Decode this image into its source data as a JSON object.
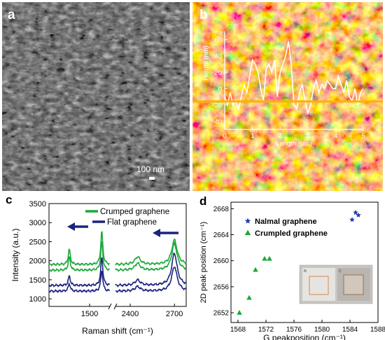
{
  "panels": {
    "a": {
      "letter": "a",
      "scale_bar": "100 nm"
    },
    "b": {
      "letter": "b",
      "ylabel": "Height  (nm)",
      "xlabel": "Length (μm)",
      "yticks": [
        "60",
        "40",
        "20",
        "0",
        "-20",
        "-40"
      ],
      "xticks": [
        "0",
        "1",
        "2",
        "3",
        "4",
        "5"
      ]
    },
    "c": {
      "letter": "c",
      "ylabel": "Intensity  (a.u.)",
      "xlabel": "Raman shift (cm⁻¹)",
      "yticks": [
        "3500",
        "3000",
        "2500",
        "2000",
        "1500",
        "1000"
      ],
      "xticks": [
        "1500",
        "2400",
        "2700"
      ],
      "legend": [
        "Crumped graphene",
        "Flat graphene"
      ]
    },
    "d": {
      "letter": "d",
      "ylabel": "2D peak position (cm⁻¹)",
      "xlabel": "G peakposition (cm⁻¹)",
      "yticks": [
        "2668",
        "2664",
        "2660",
        "2656",
        "2652"
      ],
      "xticks": [
        "1568",
        "1572",
        "1576",
        "1580",
        "1584",
        "1588"
      ],
      "legend": [
        "Nalmal graphene",
        "Crumpled graphene"
      ],
      "inset_labels": [
        "N",
        "C"
      ]
    }
  },
  "colors": {
    "green": "#1ea83a",
    "navy": "#1a237e",
    "orange": "#ffb000",
    "blue_star": "#1f3ea8"
  },
  "chart_data": [
    {
      "panel": "b",
      "type": "line",
      "xlim": [
        0,
        5
      ],
      "ylim": [
        -50,
        70
      ],
      "x": [
        0,
        0.1,
        0.2,
        0.3,
        0.4,
        0.5,
        0.6,
        0.7,
        0.8,
        0.9,
        1.0,
        1.1,
        1.2,
        1.3,
        1.4,
        1.5,
        1.6,
        1.7,
        1.8,
        1.9,
        2.0,
        2.1,
        2.2,
        2.3,
        2.4,
        2.5,
        2.6,
        2.7,
        2.8,
        2.9,
        3.0,
        3.1,
        3.2,
        3.3,
        3.4,
        3.5,
        3.6,
        3.7,
        3.8,
        3.9,
        4.0,
        4.1,
        4.2,
        4.3,
        4.4,
        4.5,
        4.6,
        4.7,
        4.8,
        4.9,
        5.0
      ],
      "y": [
        -10,
        -20,
        -5,
        -20,
        -15,
        -25,
        -10,
        5,
        -5,
        15,
        35,
        30,
        20,
        0,
        -15,
        25,
        30,
        20,
        35,
        -10,
        20,
        30,
        40,
        58,
        30,
        -20,
        -25,
        -5,
        5,
        -15,
        -30,
        -20,
        0,
        10,
        -5,
        5,
        0,
        10,
        5,
        0,
        0,
        15,
        5,
        -5,
        10,
        -10,
        -15,
        0,
        -20,
        -5,
        0
      ]
    },
    {
      "panel": "c",
      "type": "line",
      "segments": [
        "1200-1650",
        "2300-2780"
      ],
      "ylim": [
        800,
        3500
      ],
      "series": [
        {
          "name": "Crumped graphene",
          "color": "green",
          "base": 1900,
          "peaks": [
            [
              1350,
              400
            ],
            [
              1590,
              870
            ],
            [
              2450,
              200
            ],
            [
              2700,
              650
            ]
          ]
        },
        {
          "name": "Crumped graphene",
          "color": "green",
          "base": 1750,
          "peaks": [
            [
              1350,
              350
            ],
            [
              1590,
              750
            ],
            [
              2450,
              180
            ],
            [
              2700,
              700
            ]
          ]
        },
        {
          "name": "Flat graphene",
          "color": "navy",
          "base": 1350,
          "peaks": [
            [
              1350,
              250
            ],
            [
              1590,
              750
            ],
            [
              2450,
              140
            ],
            [
              2700,
              850
            ]
          ]
        },
        {
          "name": "Flat graphene",
          "color": "navy",
          "base": 1200,
          "peaks": [
            [
              1350,
              200
            ],
            [
              1590,
              550
            ],
            [
              2450,
              120
            ],
            [
              2700,
              650
            ]
          ]
        }
      ]
    },
    {
      "panel": "d",
      "type": "scatter",
      "xlim": [
        1567,
        1588
      ],
      "ylim": [
        2650.5,
        2669
      ],
      "series": [
        {
          "name": "Nalmal graphene",
          "marker": "star",
          "points": [
            [
              1584.3,
              2666.3
            ],
            [
              1584.8,
              2667.4
            ],
            [
              1585.2,
              2667.0
            ]
          ]
        },
        {
          "name": "Crumpled graphene",
          "marker": "triangle",
          "points": [
            [
              1568.2,
              2652.0
            ],
            [
              1569.6,
              2654.3
            ],
            [
              1570.5,
              2658.6
            ],
            [
              1571.8,
              2660.3
            ],
            [
              1572.5,
              2660.3
            ]
          ]
        }
      ]
    }
  ]
}
